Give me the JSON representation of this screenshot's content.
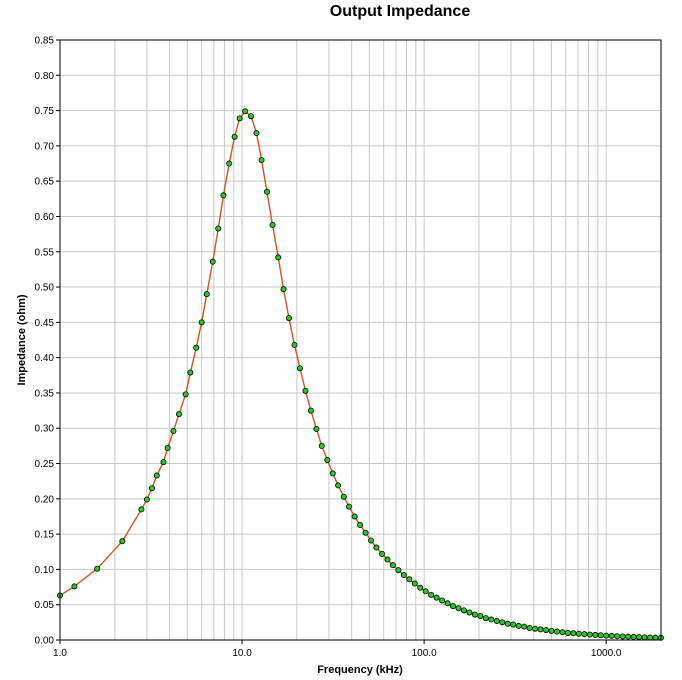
{
  "chart_data": {
    "type": "line",
    "title": "Output Impedance",
    "xlabel": "Frequency (kHz)",
    "ylabel": "Impedance (ohm)",
    "x_scale": "log",
    "xlim": [
      1,
      2000
    ],
    "ylim": [
      0,
      0.85
    ],
    "grid": true,
    "legend": "none",
    "x_tick_labels": [
      "1.0",
      "10.0",
      "100.0",
      "1000.0"
    ],
    "y_tick_labels": [
      "0.00",
      "0.05",
      "0.10",
      "0.15",
      "0.20",
      "0.25",
      "0.30",
      "0.35",
      "0.40",
      "0.45",
      "0.50",
      "0.55",
      "0.60",
      "0.65",
      "0.70",
      "0.75",
      "0.80",
      "0.85"
    ],
    "line_color": "#d2561e",
    "marker_color": "#22cc22",
    "x": [
      1.0,
      1.2,
      1.6,
      2.2,
      2.8,
      3.0,
      3.2,
      3.4,
      3.7,
      3.9,
      4.2,
      4.5,
      4.9,
      5.2,
      5.6,
      6.0,
      6.4,
      6.9,
      7.4,
      7.9,
      8.5,
      9.1,
      9.7,
      10.4,
      11.2,
      12.0,
      12.8,
      13.7,
      14.7,
      15.8,
      16.9,
      18.1,
      19.4,
      20.8,
      22.3,
      23.9,
      25.6,
      27.4,
      29.4,
      31.5,
      33.7,
      36.2,
      38.7,
      41.5,
      44.5,
      47.7,
      51.1,
      54.7,
      58.7,
      62.9,
      67.4,
      72.2,
      77.4,
      82.9,
      88.8,
      95.2,
      102,
      109.3,
      117.1,
      125.5,
      134.5,
      144.1,
      154.5,
      165.5,
      177.4,
      190.1,
      203.7,
      218.3,
      233.9,
      250.7,
      268.6,
      287.9,
      308.5,
      330.6,
      354.3,
      379.7,
      406.9,
      436.1,
      467.3,
      500.8,
      536.7,
      575.2,
      616.4,
      660.6,
      707.9,
      758.6,
      813,
      871.2,
      933.7,
      1000.6,
      1072.3,
      1149.1,
      1231.5,
      1319.7,
      1414.3,
      1515.6,
      1624.2,
      1740.6,
      1865.3,
      1999
    ],
    "y": [
      0.063,
      0.076,
      0.101,
      0.14,
      0.185,
      0.199,
      0.215,
      0.233,
      0.252,
      0.272,
      0.296,
      0.32,
      0.348,
      0.379,
      0.414,
      0.45,
      0.49,
      0.536,
      0.583,
      0.63,
      0.675,
      0.713,
      0.739,
      0.749,
      0.742,
      0.718,
      0.68,
      0.635,
      0.588,
      0.542,
      0.497,
      0.456,
      0.418,
      0.385,
      0.353,
      0.325,
      0.299,
      0.275,
      0.255,
      0.236,
      0.219,
      0.203,
      0.189,
      0.175,
      0.163,
      0.152,
      0.141,
      0.131,
      0.122,
      0.114,
      0.106,
      0.099,
      0.092,
      0.086,
      0.08,
      0.074,
      0.069,
      0.064,
      0.06,
      0.056,
      0.052,
      0.048,
      0.045,
      0.042,
      0.039,
      0.036,
      0.034,
      0.031,
      0.029,
      0.027,
      0.025,
      0.023,
      0.022,
      0.02,
      0.019,
      0.017,
      0.016,
      0.015,
      0.014,
      0.013,
      0.012,
      0.011,
      0.01,
      0.0095,
      0.0089,
      0.0083,
      0.0077,
      0.0072,
      0.0067,
      0.0062,
      0.0058,
      0.0054,
      0.005,
      0.0047,
      0.0044,
      0.0041,
      0.0038,
      0.0035,
      0.0033,
      0.0031
    ]
  }
}
